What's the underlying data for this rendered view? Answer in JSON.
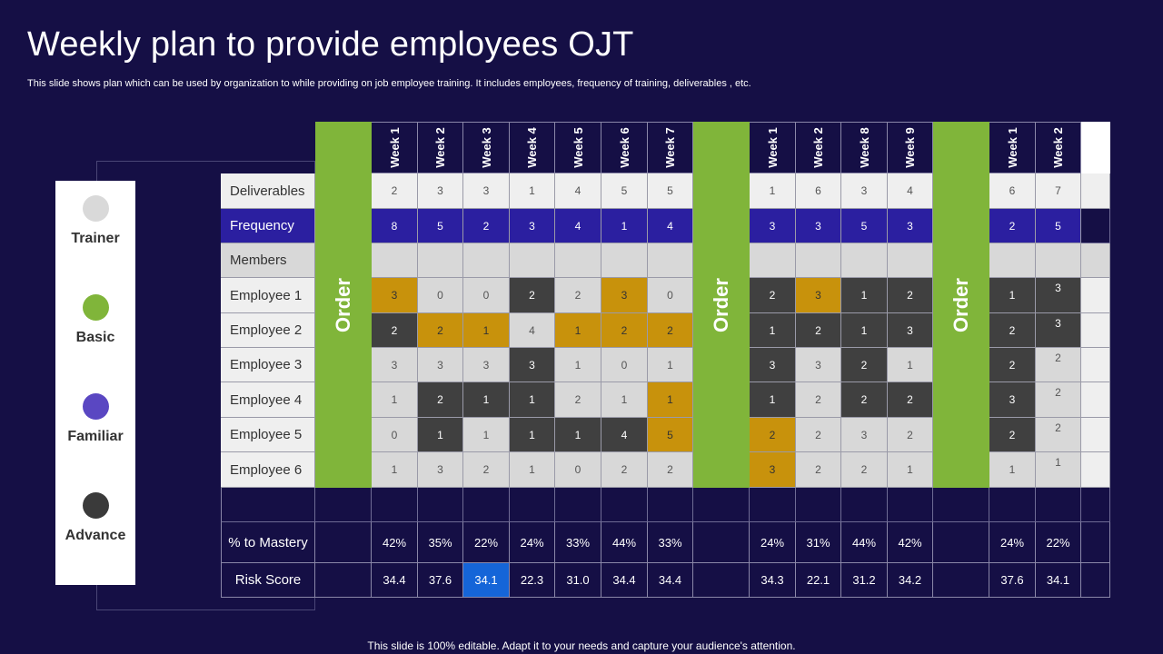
{
  "title": "Weekly plan to provide employees OJT",
  "subtitle": "This slide shows plan which can be used by organization to while providing on job employee training. It includes employees, frequency of training, deliverables , etc.",
  "footer": "This slide is 100% editable. Adapt it to your needs and capture your audience's attention.",
  "legend": [
    {
      "label": "Trainer",
      "color": "#d9d9d9"
    },
    {
      "label": "Basic",
      "color": "#80b53a"
    },
    {
      "label": "Familiar",
      "color": "#5a47c2"
    },
    {
      "label": "Advance",
      "color": "#3a3a3a"
    }
  ],
  "order_label": "Order",
  "colors": {
    "gray": "#404040",
    "gold": "#c8920c",
    "light": "#d8d8d8",
    "frequency": "#2b1fa0",
    "order": "#80b53a",
    "highlight": "#1565d8"
  },
  "groups": [
    {
      "weeks": [
        "Week 1",
        "Week 2",
        "Week 3",
        "Week 4",
        "Week 5",
        "Week 6",
        "Week 7"
      ],
      "deliverables": [
        "2",
        "3",
        "3",
        "1",
        "4",
        "5",
        "5"
      ],
      "frequency": [
        "8",
        "5",
        "2",
        "3",
        "4",
        "1",
        "4"
      ],
      "employees": [
        [
          {
            "v": "3",
            "c": "gold"
          },
          {
            "v": "0",
            "c": "light"
          },
          {
            "v": "0",
            "c": "light"
          },
          {
            "v": "2",
            "c": "gray"
          },
          {
            "v": "2",
            "c": "light"
          },
          {
            "v": "3",
            "c": "gold"
          },
          {
            "v": "0",
            "c": "light"
          }
        ],
        [
          {
            "v": "2",
            "c": "gray"
          },
          {
            "v": "2",
            "c": "gold"
          },
          {
            "v": "1",
            "c": "gold"
          },
          {
            "v": "4",
            "c": "light"
          },
          {
            "v": "1",
            "c": "gold"
          },
          {
            "v": "2",
            "c": "gold"
          },
          {
            "v": "2",
            "c": "gold"
          }
        ],
        [
          {
            "v": "3",
            "c": "light"
          },
          {
            "v": "3",
            "c": "light"
          },
          {
            "v": "3",
            "c": "light"
          },
          {
            "v": "3",
            "c": "gray"
          },
          {
            "v": "1",
            "c": "light"
          },
          {
            "v": "0",
            "c": "light"
          },
          {
            "v": "1",
            "c": "light"
          }
        ],
        [
          {
            "v": "1",
            "c": "light"
          },
          {
            "v": "2",
            "c": "gray"
          },
          {
            "v": "1",
            "c": "gray"
          },
          {
            "v": "1",
            "c": "gray"
          },
          {
            "v": "2",
            "c": "light"
          },
          {
            "v": "1",
            "c": "light"
          },
          {
            "v": "1",
            "c": "gold"
          }
        ],
        [
          {
            "v": "0",
            "c": "light"
          },
          {
            "v": "1",
            "c": "gray"
          },
          {
            "v": "1",
            "c": "light"
          },
          {
            "v": "1",
            "c": "gray"
          },
          {
            "v": "1",
            "c": "gray"
          },
          {
            "v": "4",
            "c": "gray"
          },
          {
            "v": "5",
            "c": "gold"
          }
        ],
        [
          {
            "v": "1",
            "c": "light"
          },
          {
            "v": "3",
            "c": "light"
          },
          {
            "v": "2",
            "c": "light"
          },
          {
            "v": "1",
            "c": "light"
          },
          {
            "v": "0",
            "c": "light"
          },
          {
            "v": "2",
            "c": "light"
          },
          {
            "v": "2",
            "c": "light"
          }
        ]
      ],
      "mastery": [
        "42%",
        "35%",
        "22%",
        "24%",
        "33%",
        "44%",
        "33%"
      ],
      "risk": [
        {
          "v": "34.4"
        },
        {
          "v": "37.6"
        },
        {
          "v": "34.1",
          "hi": true
        },
        {
          "v": "22.3"
        },
        {
          "v": "31.0"
        },
        {
          "v": "34.4"
        },
        {
          "v": "34.4"
        }
      ]
    },
    {
      "weeks": [
        "Week 1",
        "Week 2",
        "Week 8",
        "Week 9"
      ],
      "deliverables": [
        "1",
        "6",
        "3",
        "4"
      ],
      "frequency": [
        "3",
        "3",
        "5",
        "3"
      ],
      "employees": [
        [
          {
            "v": "2",
            "c": "gray"
          },
          {
            "v": "3",
            "c": "gold"
          },
          {
            "v": "1",
            "c": "gray"
          },
          {
            "v": "2",
            "c": "gray"
          }
        ],
        [
          {
            "v": "1",
            "c": "gray"
          },
          {
            "v": "2",
            "c": "gray"
          },
          {
            "v": "1",
            "c": "gray"
          },
          {
            "v": "3",
            "c": "gray"
          }
        ],
        [
          {
            "v": "3",
            "c": "gray"
          },
          {
            "v": "3",
            "c": "light"
          },
          {
            "v": "2",
            "c": "gray"
          },
          {
            "v": "1",
            "c": "light"
          }
        ],
        [
          {
            "v": "1",
            "c": "gray"
          },
          {
            "v": "2",
            "c": "light"
          },
          {
            "v": "2",
            "c": "gray"
          },
          {
            "v": "2",
            "c": "gray"
          }
        ],
        [
          {
            "v": "2",
            "c": "gold"
          },
          {
            "v": "2",
            "c": "light"
          },
          {
            "v": "3",
            "c": "light"
          },
          {
            "v": "2",
            "c": "light"
          }
        ],
        [
          {
            "v": "3",
            "c": "gold"
          },
          {
            "v": "2",
            "c": "light"
          },
          {
            "v": "2",
            "c": "light"
          },
          {
            "v": "1",
            "c": "light"
          }
        ]
      ],
      "mastery": [
        "24%",
        "31%",
        "44%",
        "42%"
      ],
      "risk": [
        {
          "v": "34.3"
        },
        {
          "v": "22.1"
        },
        {
          "v": "31.2"
        },
        {
          "v": "34.2"
        }
      ]
    },
    {
      "weeks": [
        "Week 1",
        "Week 2"
      ],
      "deliverables": [
        "6",
        "7"
      ],
      "frequency": [
        "2",
        "5"
      ],
      "employees": [
        [
          {
            "v": "1",
            "c": "gray"
          },
          {
            "v": "3",
            "c": "gray"
          }
        ],
        [
          {
            "v": "2",
            "c": "gray"
          },
          {
            "v": "3",
            "c": "gray"
          }
        ],
        [
          {
            "v": "2",
            "c": "gray"
          },
          {
            "v": "2",
            "c": "light"
          }
        ],
        [
          {
            "v": "3",
            "c": "gray"
          },
          {
            "v": "2",
            "c": "light"
          }
        ],
        [
          {
            "v": "2",
            "c": "gray"
          },
          {
            "v": "2",
            "c": "light"
          }
        ],
        [
          {
            "v": "1",
            "c": "light"
          },
          {
            "v": "1",
            "c": "light"
          }
        ]
      ],
      "mastery": [
        "24%",
        "22%"
      ],
      "risk": [
        {
          "v": "37.6"
        },
        {
          "v": "34.1"
        }
      ]
    }
  ],
  "row_labels": {
    "deliverables": "Deliverables",
    "frequency": "Frequency",
    "members": "Members",
    "employees": [
      "Employee 1",
      "Employee 2",
      "Employee 3",
      "Employee 4",
      "Employee 5",
      "Employee 6"
    ],
    "mastery": "% to Mastery",
    "risk": "Risk Score"
  }
}
